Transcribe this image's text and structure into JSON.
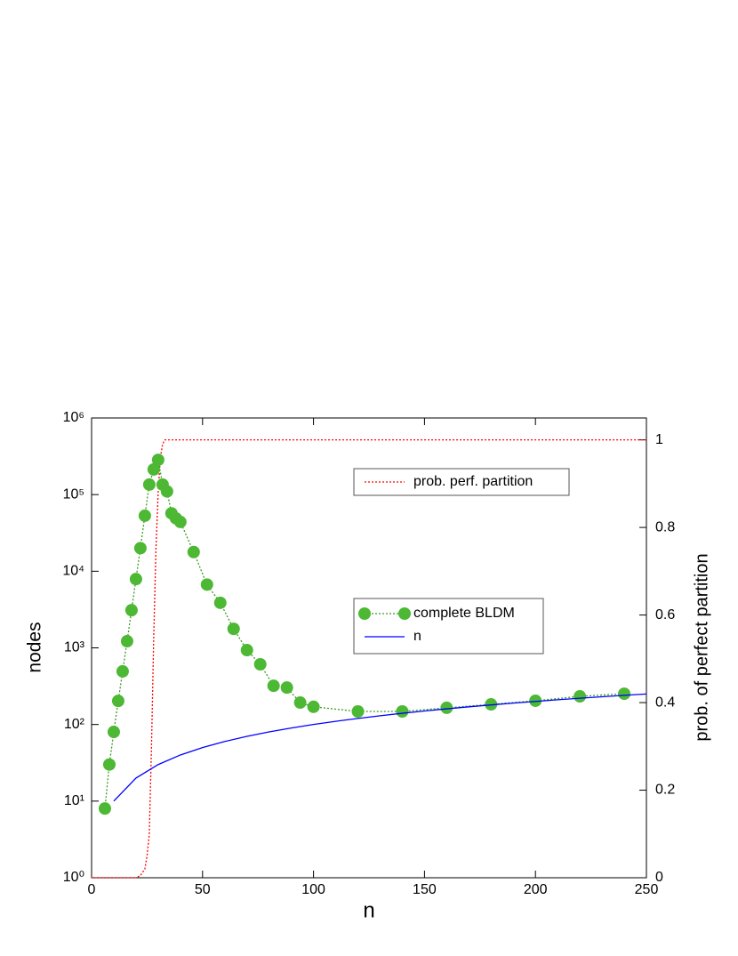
{
  "chart_data": {
    "type": "line",
    "xlabel": "n",
    "ylabel": "nodes",
    "y2label": "prob. of perfect partition",
    "xlim": [
      0,
      250
    ],
    "xticks": [
      0,
      50,
      100,
      150,
      200,
      250
    ],
    "ylim": [
      1,
      1000000
    ],
    "ylog": true,
    "yticks": [
      {
        "value": 1,
        "label": "10⁰"
      },
      {
        "value": 10,
        "label": "10¹"
      },
      {
        "value": 100,
        "label": "10²"
      },
      {
        "value": 1000,
        "label": "10³"
      },
      {
        "value": 10000,
        "label": "10⁴"
      },
      {
        "value": 100000,
        "label": "10⁵"
      },
      {
        "value": 1000000,
        "label": "10⁶"
      }
    ],
    "y2lim": [
      0,
      1.05
    ],
    "y2ticks": [
      0,
      0.2,
      0.4,
      0.6,
      0.8,
      1
    ],
    "series": [
      {
        "name": "prob. perf. partition",
        "color": "#ff0000",
        "axis": "y2",
        "dash": "dotted",
        "markers": false,
        "x": [
          0,
          20,
          22,
          24,
          25,
          26,
          27,
          28,
          29,
          30,
          31,
          32,
          33,
          250
        ],
        "values": [
          0,
          0,
          0.005,
          0.02,
          0.05,
          0.1,
          0.3,
          0.55,
          0.75,
          0.88,
          0.96,
          0.99,
          1,
          1
        ]
      },
      {
        "name": "complete BLDM",
        "color": "#4cb833",
        "axis": "y",
        "dash": "dotted",
        "markers": true,
        "line_color": "#3a9a20",
        "x": [
          6,
          8,
          10,
          12,
          14,
          16,
          18,
          20,
          22,
          24,
          26,
          28,
          30,
          32,
          34,
          36,
          38,
          40,
          46,
          52,
          58,
          64,
          70,
          76,
          82,
          88,
          94,
          100,
          120,
          140,
          160,
          180,
          200,
          220,
          240
        ],
        "values": [
          8,
          30,
          80,
          203,
          494,
          1220,
          3100,
          7900,
          20000,
          53000,
          135000,
          213000,
          284000,
          135000,
          110000,
          57000,
          49000,
          44000,
          17800,
          6700,
          3870,
          1770,
          935,
          610,
          320,
          303,
          193,
          170,
          148,
          148,
          165,
          183,
          204,
          233,
          252
        ]
      },
      {
        "name": "n",
        "color": "#0000ff",
        "axis": "y",
        "dash": "solid",
        "markers": false,
        "x": [
          10,
          20,
          30,
          40,
          50,
          60,
          70,
          80,
          90,
          100,
          110,
          120,
          130,
          140,
          150,
          160,
          170,
          180,
          190,
          200,
          210,
          220,
          230,
          240,
          250
        ],
        "values": [
          10,
          20,
          30,
          40,
          50,
          60,
          70,
          80,
          90,
          100,
          110,
          120,
          130,
          140,
          150,
          160,
          170,
          180,
          190,
          200,
          210,
          220,
          230,
          240,
          250
        ]
      }
    ]
  }
}
